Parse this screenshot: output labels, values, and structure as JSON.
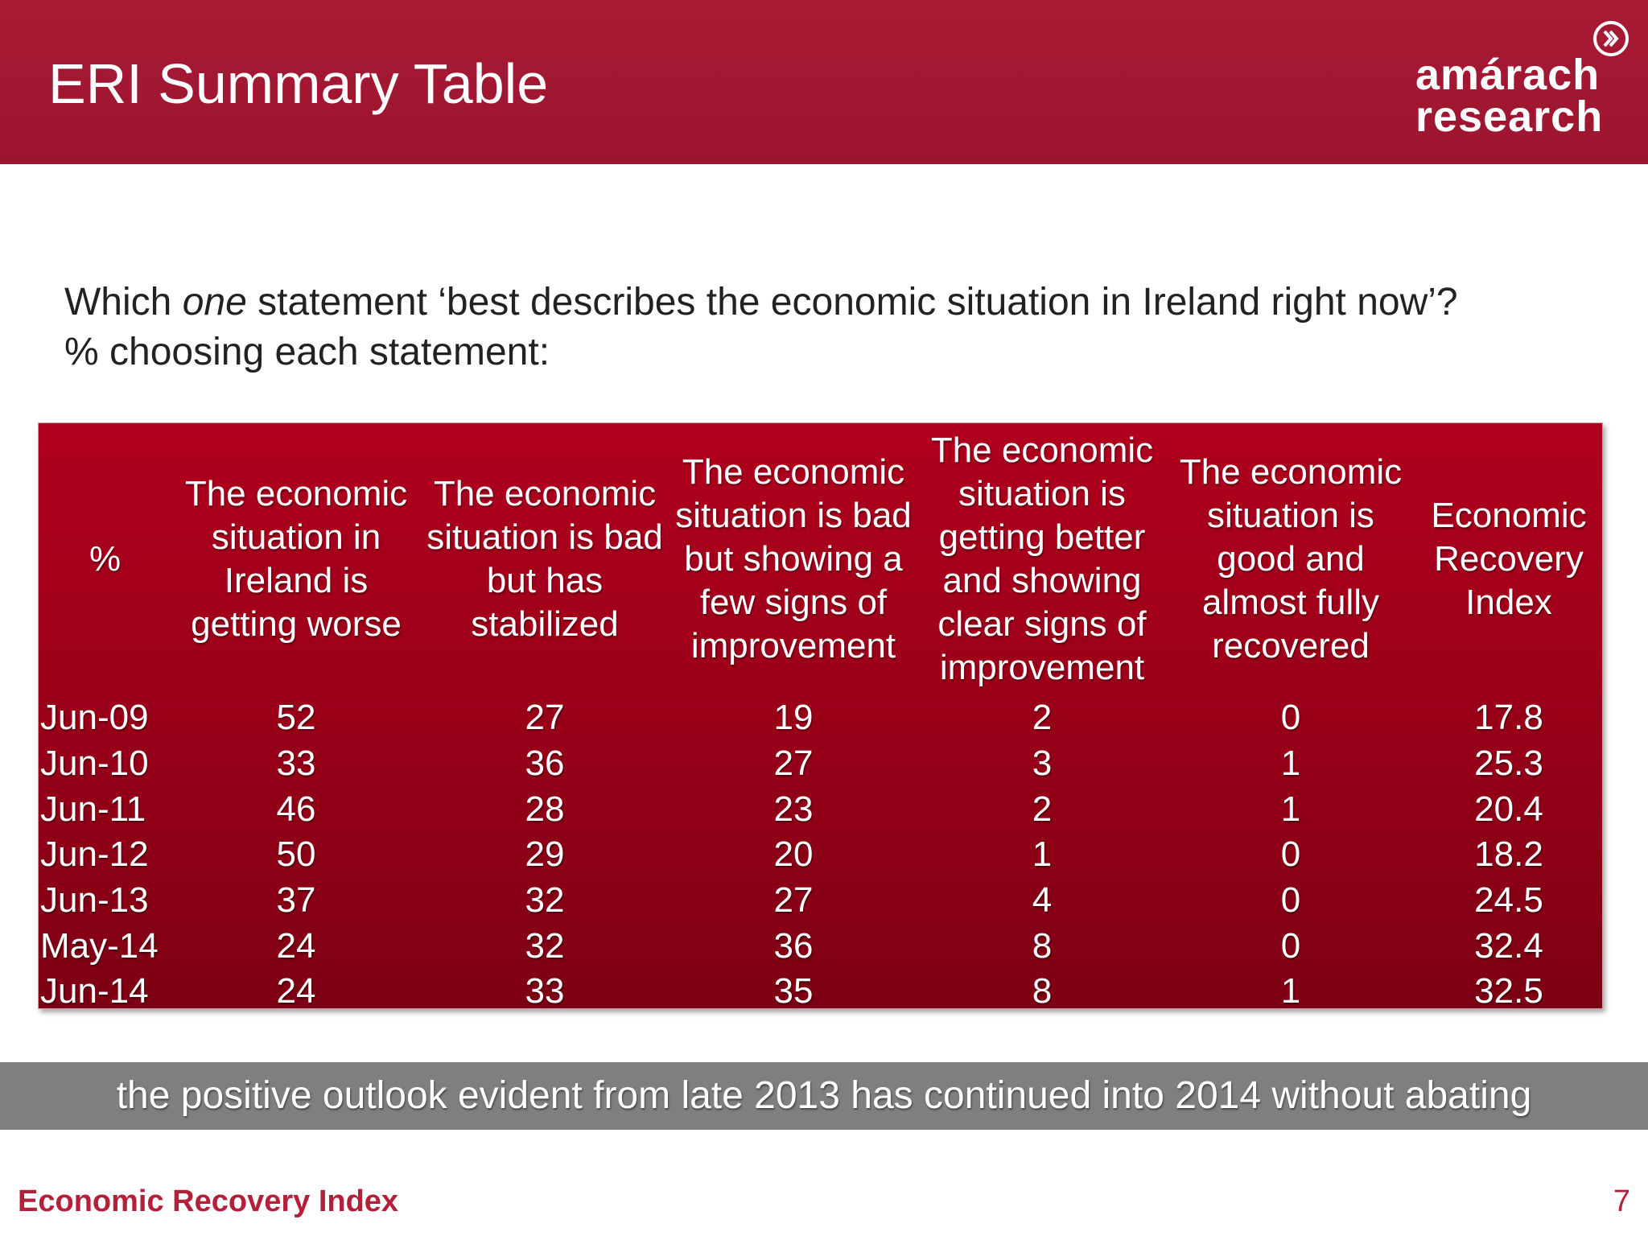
{
  "header": {
    "title": "ERI Summary Table",
    "logo_line1": "amárach",
    "logo_line2": "research",
    "logo_icon": "chevron-circle-icon",
    "brand_color": "#a81a33"
  },
  "question": {
    "line1_before": "Which ",
    "line1_emphasis": "one",
    "line1_after": " statement ‘best describes the economic situation in Ireland right now’?",
    "line2": "% choosing each statement:"
  },
  "table": {
    "headers": [
      "%",
      "The economic situation in Ireland is getting worse",
      "The economic situation is bad but has stabilized",
      "The economic situation is bad but showing a few signs of improvement",
      "The economic situation is getting better and showing clear signs of improvement",
      "The economic situation is good and almost fully recovered",
      "Economic Recovery Index"
    ],
    "rows": [
      [
        "Jun-09",
        "52",
        "27",
        "19",
        "2",
        "0",
        "17.8"
      ],
      [
        "Jun-10",
        "33",
        "36",
        "27",
        "3",
        "1",
        "25.3"
      ],
      [
        "Jun-11",
        "46",
        "28",
        "23",
        "2",
        "1",
        "20.4"
      ],
      [
        "Jun-12",
        "50",
        "29",
        "20",
        "1",
        "0",
        "18.2"
      ],
      [
        "Jun-13",
        "37",
        "32",
        "27",
        "4",
        "0",
        "24.5"
      ],
      [
        "May-14",
        "24",
        "32",
        "36",
        "8",
        "0",
        "32.4"
      ],
      [
        "Jun-14",
        "24",
        "33",
        "35",
        "8",
        "1",
        "32.5"
      ]
    ]
  },
  "callout": "the positive outlook evident from late 2013 has continued into 2014 without abating",
  "footer": {
    "title": "Economic Recovery Index",
    "page_number": "7"
  }
}
